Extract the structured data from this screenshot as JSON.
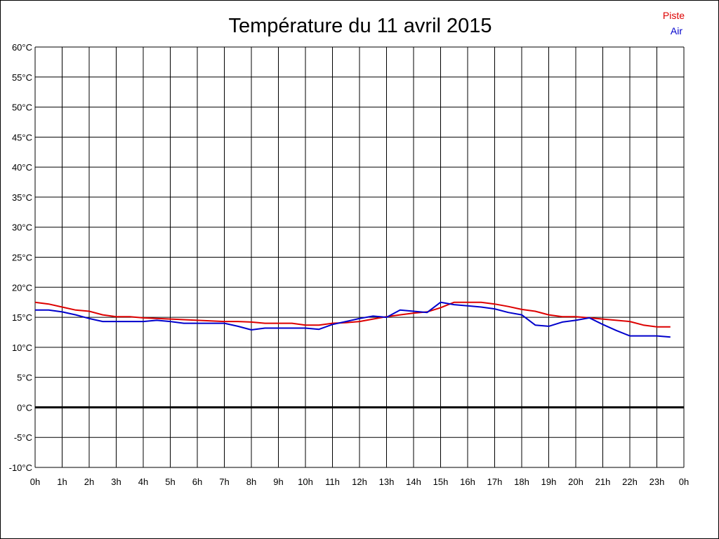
{
  "chart_data": {
    "type": "line",
    "title": "Température du 11 avril 2015",
    "xlabel": "",
    "ylabel": "",
    "x_tick_labels": [
      "0h",
      "1h",
      "2h",
      "3h",
      "4h",
      "5h",
      "6h",
      "7h",
      "8h",
      "9h",
      "10h",
      "11h",
      "12h",
      "13h",
      "14h",
      "15h",
      "16h",
      "17h",
      "18h",
      "19h",
      "20h",
      "21h",
      "22h",
      "23h",
      "0h"
    ],
    "y_tick_labels": [
      "60°C",
      "55°C",
      "50°C",
      "45°C",
      "40°C",
      "35°C",
      "30°C",
      "25°C",
      "20°C",
      "15°C",
      "10°C",
      "5°C",
      "0°C",
      "-5°C",
      "-10°C"
    ],
    "xlim": [
      0,
      24
    ],
    "ylim": [
      -10,
      60
    ],
    "grid": true,
    "legend_position": "top-right",
    "series": [
      {
        "name": "Piste",
        "color": "#dd0000",
        "x": [
          0,
          0.5,
          1,
          1.5,
          2,
          2.5,
          3,
          3.5,
          4,
          4.5,
          5,
          5.5,
          6,
          6.5,
          7,
          7.5,
          8,
          8.5,
          9,
          9.5,
          10,
          10.5,
          11,
          11.5,
          12,
          12.5,
          13,
          13.5,
          14,
          14.5,
          15,
          15.5,
          16,
          16.5,
          17,
          17.5,
          18,
          18.5,
          19,
          19.5,
          20,
          20.5,
          21,
          21.5,
          22,
          22.5,
          23,
          23.5
        ],
        "values": [
          17.5,
          17.2,
          16.7,
          16.2,
          16.0,
          15.4,
          15.1,
          15.1,
          14.9,
          14.8,
          14.7,
          14.6,
          14.5,
          14.4,
          14.3,
          14.3,
          14.2,
          14.0,
          14.0,
          14.0,
          13.7,
          13.7,
          14.0,
          14.1,
          14.3,
          14.7,
          15.1,
          15.4,
          15.7,
          15.9,
          16.6,
          17.5,
          17.5,
          17.5,
          17.2,
          16.8,
          16.3,
          16.0,
          15.4,
          15.1,
          15.1,
          14.9,
          14.7,
          14.5,
          14.3,
          13.7,
          13.4,
          13.4
        ]
      },
      {
        "name": "Air",
        "color": "#0000cc",
        "x": [
          0,
          0.5,
          1,
          1.5,
          2,
          2.5,
          3,
          3.5,
          4,
          4.5,
          5,
          5.5,
          6,
          6.5,
          7,
          7.5,
          8,
          8.5,
          9,
          9.5,
          10,
          10.5,
          11,
          11.5,
          12,
          12.5,
          13,
          13.5,
          14,
          14.5,
          15,
          15.5,
          16,
          16.5,
          17,
          17.5,
          18,
          18.5,
          19,
          19.5,
          20,
          20.5,
          21,
          21.5,
          22,
          22.5,
          23,
          23.5
        ],
        "values": [
          16.2,
          16.2,
          15.9,
          15.4,
          14.8,
          14.3,
          14.3,
          14.3,
          14.3,
          14.5,
          14.3,
          14.0,
          14.0,
          14.0,
          14.0,
          13.5,
          12.9,
          13.2,
          13.2,
          13.2,
          13.2,
          13.0,
          13.8,
          14.3,
          14.8,
          15.2,
          15.0,
          16.2,
          16.0,
          15.8,
          17.5,
          17.1,
          16.9,
          16.7,
          16.4,
          15.8,
          15.4,
          13.7,
          13.5,
          14.2,
          14.5,
          14.9,
          13.8,
          12.8,
          11.9,
          11.9,
          11.9,
          11.7
        ]
      }
    ]
  }
}
